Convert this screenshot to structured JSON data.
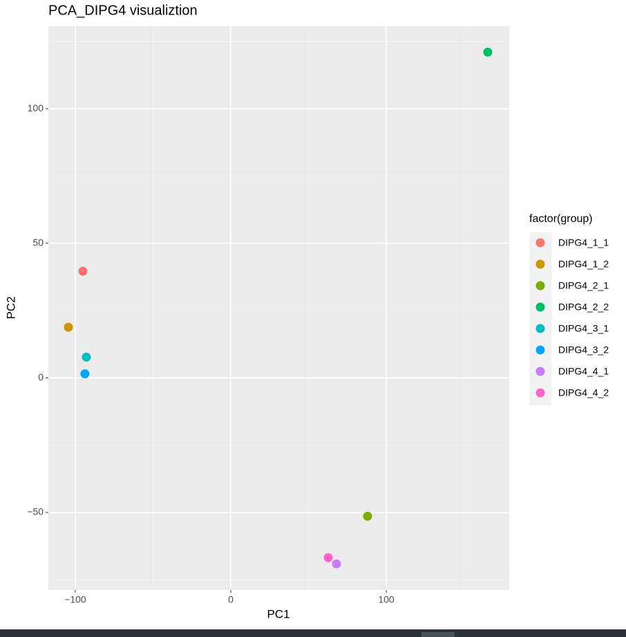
{
  "chart_data": {
    "type": "scatter",
    "title": "PCA_DIPG4 visualiztion",
    "x_label": "PC1",
    "y_label": "PC2",
    "legend_title": "factor(group)",
    "legend": "right",
    "grid": true,
    "xlim": [
      -117.3,
      179.1
    ],
    "ylim": [
      -78.8,
      130.6
    ],
    "xticks": [
      {
        "value": -100,
        "label": "−100"
      },
      0,
      100
    ],
    "yticks": [
      {
        "value": -50,
        "label": "−50"
      },
      0,
      50,
      100
    ],
    "series": [
      {
        "name": "DIPG4_1_1",
        "color": "#F8766D",
        "x": [
          -95.1
        ],
        "values": [
          39.6
        ]
      },
      {
        "name": "DIPG4_1_2",
        "color": "#CD9600",
        "x": [
          -104.4
        ],
        "values": [
          18.8
        ]
      },
      {
        "name": "DIPG4_2_1",
        "color": "#7CAE00",
        "x": [
          88.0
        ],
        "values": [
          -51.4
        ]
      },
      {
        "name": "DIPG4_2_2",
        "color": "#00BE67",
        "x": [
          165.3
        ],
        "values": [
          121.0
        ]
      },
      {
        "name": "DIPG4_3_1",
        "color": "#00BFC4",
        "x": [
          -92.9
        ],
        "values": [
          7.7
        ]
      },
      {
        "name": "DIPG4_3_2",
        "color": "#00A9FF",
        "x": [
          -93.8
        ],
        "values": [
          1.5
        ]
      },
      {
        "name": "DIPG4_4_1",
        "color": "#C77CFF",
        "x": [
          68.0
        ],
        "values": [
          -69.1
        ]
      },
      {
        "name": "DIPG4_4_2",
        "color": "#FF61CC",
        "x": [
          62.7
        ],
        "values": [
          -66.8
        ]
      }
    ]
  }
}
